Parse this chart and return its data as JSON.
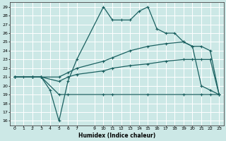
{
  "xlabel": "Humidex (Indice chaleur)",
  "bg_color": "#cce8e6",
  "grid_color": "#ffffff",
  "line_color": "#1a6060",
  "xlim": [
    -0.5,
    23.5
  ],
  "ylim": [
    15.5,
    29.5
  ],
  "xticks": [
    0,
    1,
    2,
    3,
    4,
    5,
    6,
    7,
    9,
    10,
    11,
    12,
    13,
    14,
    15,
    16,
    17,
    18,
    19,
    20,
    21,
    22,
    23
  ],
  "yticks": [
    16,
    17,
    18,
    19,
    20,
    21,
    22,
    23,
    24,
    25,
    26,
    27,
    28,
    29
  ],
  "curve1_x": [
    0,
    1,
    2,
    3,
    4,
    5,
    6,
    7,
    10,
    11,
    12,
    13,
    14,
    15,
    16,
    17,
    18,
    19,
    20,
    21,
    22,
    23
  ],
  "curve1_y": [
    21,
    21,
    21,
    21,
    19.5,
    16,
    20.5,
    23,
    29,
    27.5,
    27.5,
    27.5,
    28.5,
    29,
    26.5,
    26,
    26,
    25,
    24.5,
    20,
    19.5,
    19
  ],
  "curve2_x": [
    0,
    2,
    3,
    5,
    6,
    10,
    11,
    15,
    19,
    21,
    22,
    23
  ],
  "curve2_y": [
    21,
    21,
    21,
    19,
    19,
    19,
    19,
    19,
    19,
    19,
    19,
    19
  ],
  "curve3_x": [
    0,
    2,
    3,
    5,
    6,
    7,
    10,
    11,
    13,
    15,
    17,
    19,
    20,
    21,
    22,
    23
  ],
  "curve3_y": [
    21,
    21,
    21,
    20.5,
    21,
    21.3,
    21.7,
    22.0,
    22.3,
    22.5,
    22.8,
    23.0,
    23.0,
    23.0,
    23.0,
    19
  ],
  "curve4_x": [
    0,
    2,
    3,
    5,
    6,
    7,
    10,
    11,
    13,
    15,
    17,
    19,
    20,
    21,
    22,
    23
  ],
  "curve4_y": [
    21,
    21,
    21,
    21,
    21.5,
    22,
    22.8,
    23.2,
    24.0,
    24.5,
    24.8,
    25.0,
    24.5,
    24.5,
    24.0,
    19
  ]
}
